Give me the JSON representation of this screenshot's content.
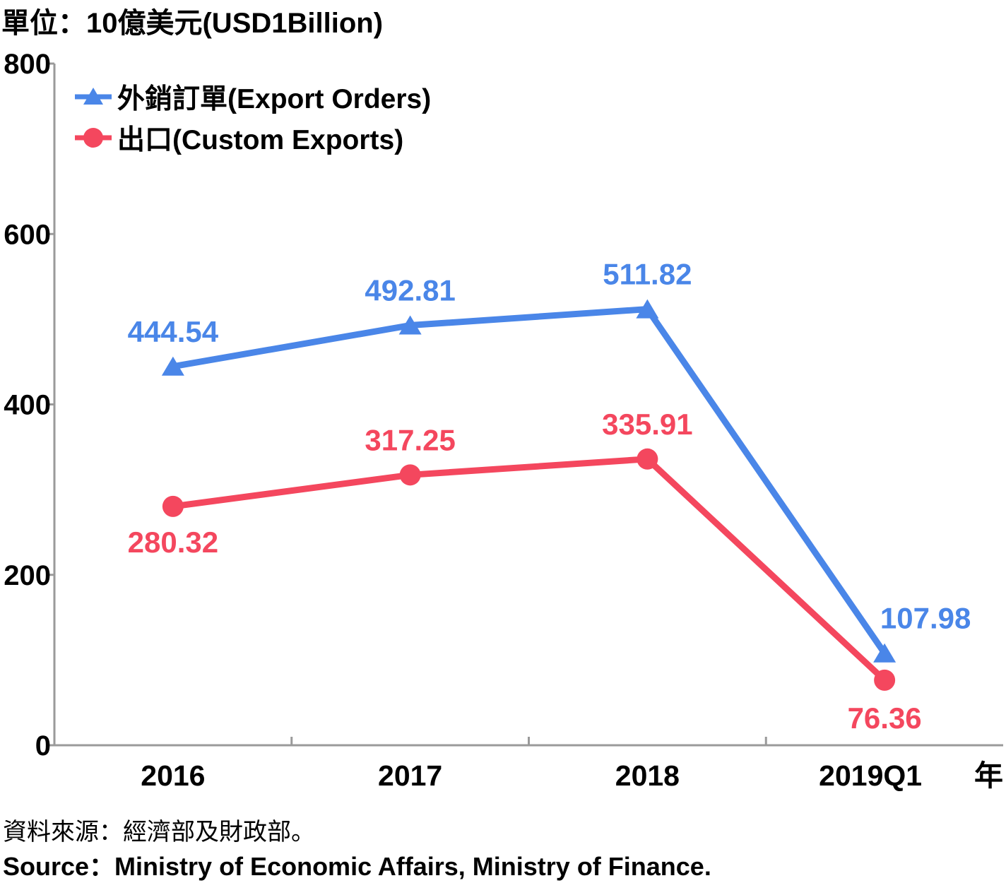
{
  "unit_label": "單位：10億美元(USD1Billion)",
  "source_zh": "資料來源：經濟部及財政部。",
  "source_en": "Source：Ministry of Economic Affairs, Ministry of Finance.",
  "chart_data": {
    "type": "line",
    "categories": [
      "2016",
      "2017",
      "2018",
      "2019Q1"
    ],
    "xlabel": "年",
    "ylabel": "單位：10億美元(USD1Billion)",
    "ylim": [
      0,
      800
    ],
    "yticks": [
      "0",
      "200",
      "400",
      "600",
      "800"
    ],
    "grid": false,
    "legend_position": "top-left",
    "series": [
      {
        "name": "外銷訂單(Export Orders)",
        "marker": "triangle",
        "color": "#4a86e8",
        "values": [
          444.54,
          492.81,
          511.82,
          107.98
        ],
        "labels": [
          "444.54",
          "492.81",
          "511.82",
          "107.98"
        ]
      },
      {
        "name": "出口(Custom Exports)",
        "marker": "circle",
        "color": "#f4475e",
        "values": [
          280.32,
          317.25,
          335.91,
          76.36
        ],
        "labels": [
          "280.32",
          "317.25",
          "335.91",
          "76.36"
        ]
      }
    ]
  }
}
